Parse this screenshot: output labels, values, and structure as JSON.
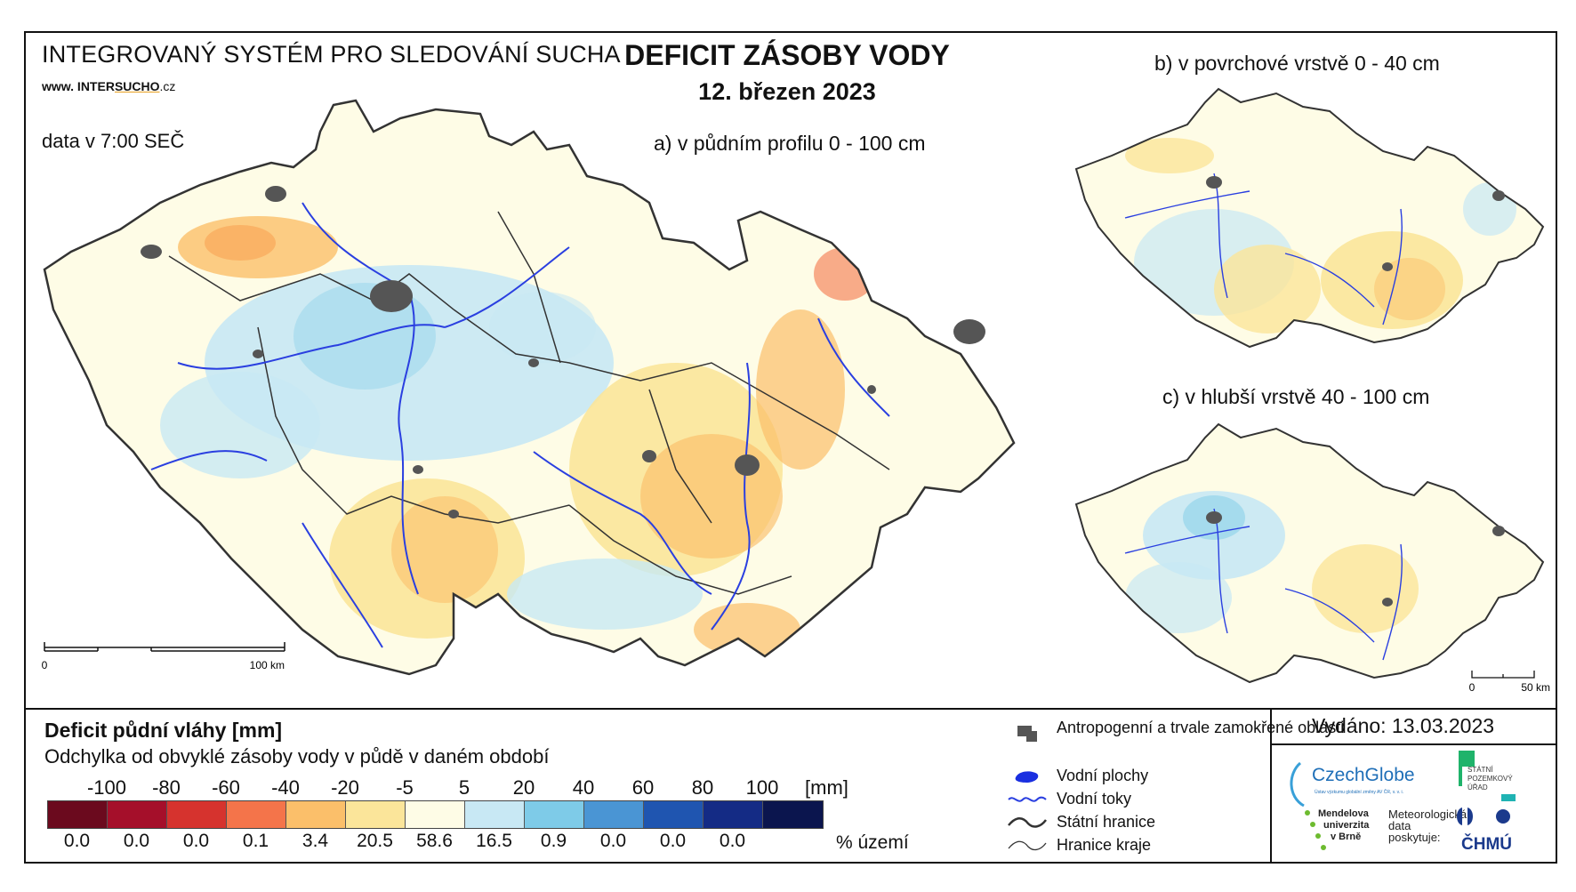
{
  "header": {
    "system_title": "INTEGROVANÝ SYSTÉM PRO SLEDOVÁNÍ SUCHA",
    "website_prefix": "www. INTER",
    "website_mid": "SUCHO",
    "website_suffix": ".cz",
    "data_time": "data v 7:00 SEČ",
    "title": "DEFICIT ZÁSOBY VODY",
    "date": "12. březen 2023"
  },
  "maps": {
    "main_label": "a) v půdním profilu 0 - 100 cm",
    "surface_label": "b) v povrchové vrstvě 0 - 40 cm",
    "deep_label": "c) v hlubší vrstvě 40 - 100 cm",
    "main_scale": {
      "start": "0",
      "end": "100 km"
    },
    "small_scale": {
      "start": "0",
      "end": "50 km"
    }
  },
  "legend": {
    "title": "Deficit půdní vláhy  [mm]",
    "subtitle": "Odchylka od obvyklé zásoby vody v půdě v daném období",
    "ticks": [
      "-100",
      "-80",
      "-60",
      "-40",
      "-20",
      "-5",
      "5",
      "20",
      "40",
      "60",
      "80",
      "100"
    ],
    "unit": "[mm]",
    "colors": [
      "#6b0a1e",
      "#a50f2a",
      "#d6332e",
      "#f4744a",
      "#fbbf6a",
      "#fbe59a",
      "#fefce6",
      "#c8e8f4",
      "#7ecbe8",
      "#4a95d4",
      "#1f55b0",
      "#142b85",
      "#0b154e"
    ],
    "percentages": [
      "0.0",
      "0.0",
      "0.0",
      "0.1",
      "3.4",
      "20.5",
      "58.6",
      "16.5",
      "0.9",
      "0.0",
      "0.0",
      "0.0"
    ],
    "percent_label": "% území"
  },
  "symbols": {
    "urban": "Antropogenní a trvale zamokřené oblasti",
    "water_bodies": "Vodní plochy",
    "rivers": "Vodní toky",
    "state_border": "Státní hranice",
    "region_border": "Hranice kraje"
  },
  "issued": "Vydáno: 13.03.2023",
  "logos": {
    "czechglobe": "CzechGlobe",
    "czechglobe_sub": "Ústav výzkumu globální změny AV ČR, v. v. i.",
    "spu_line1": "STÁTNÍ",
    "spu_line2": "POZEMKOVÝ",
    "spu_line3": "ÚŘAD",
    "mendel_line1": "Mendelova",
    "mendel_line2": "univerzita",
    "mendel_line3": "v Brně",
    "meteo_line1": "Meteorologická",
    "meteo_line2": "data",
    "meteo_line3": "poskytuje:",
    "chmu": "ČHMÚ"
  }
}
